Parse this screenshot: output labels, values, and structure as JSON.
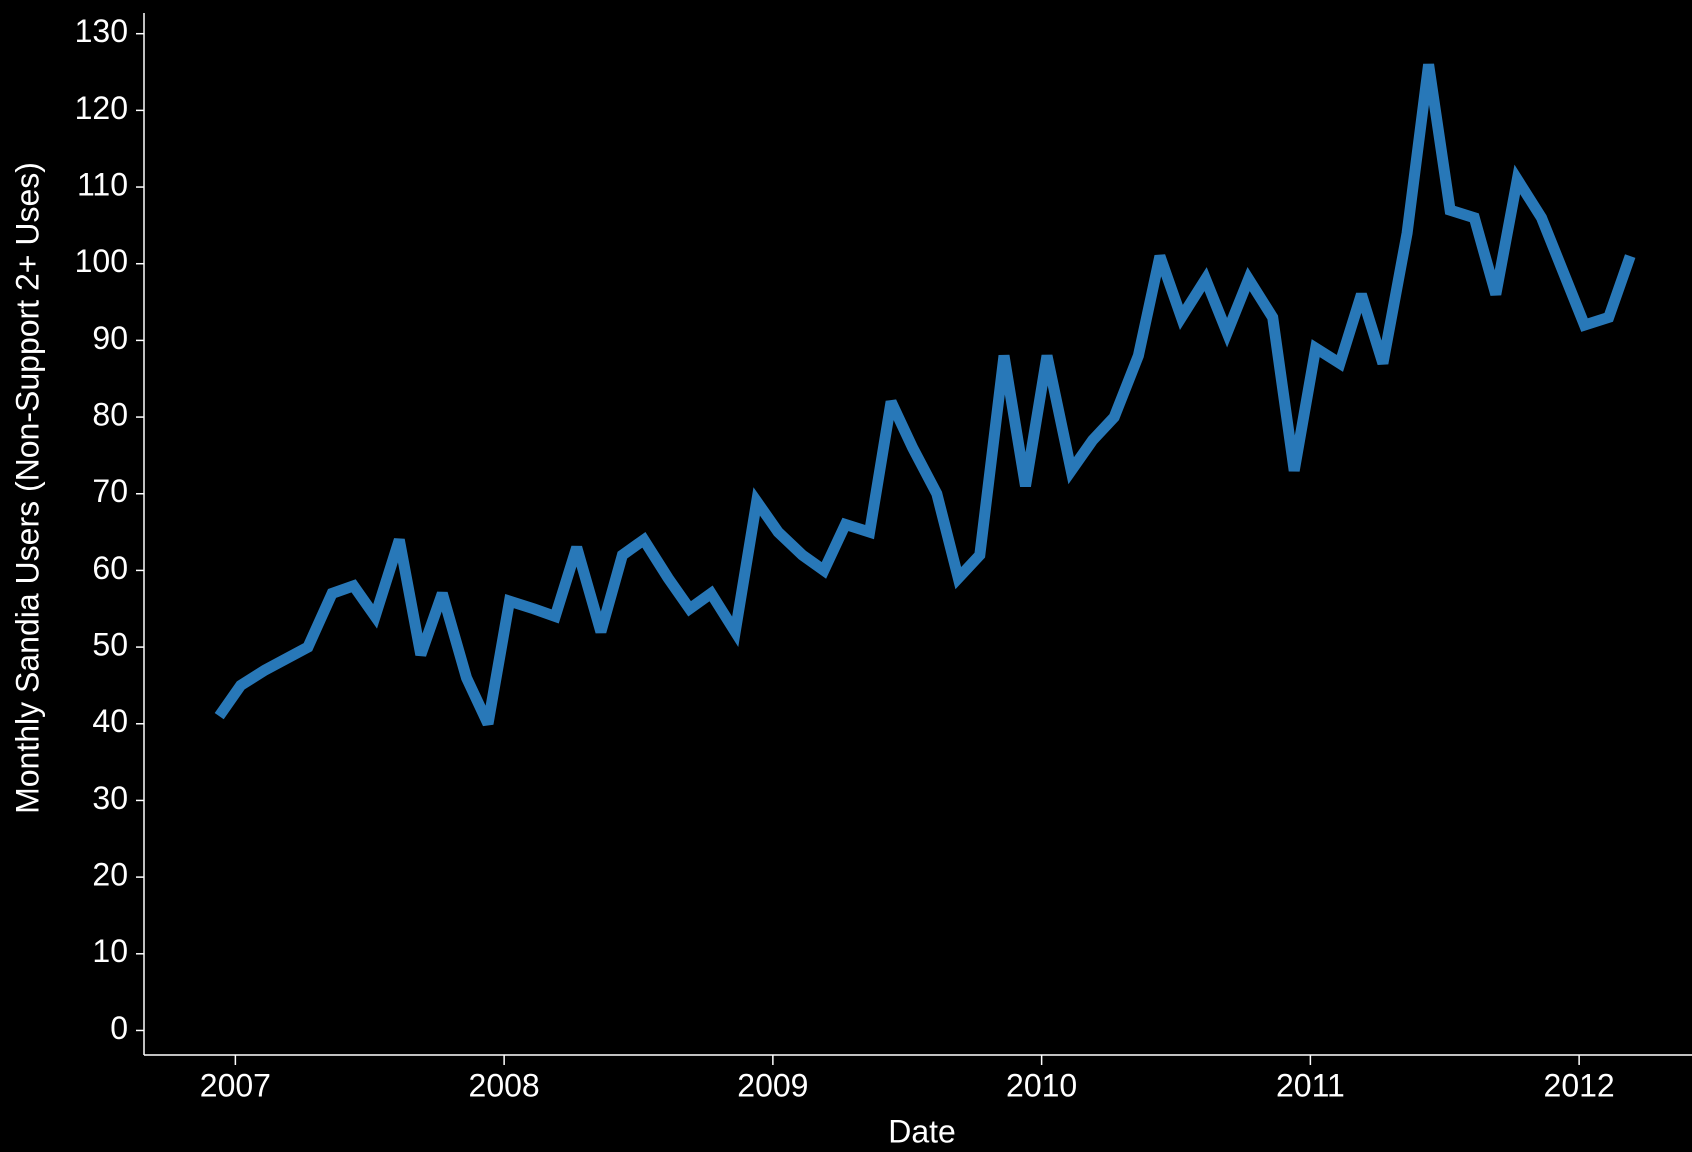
{
  "chart_data": {
    "type": "line",
    "x_label": "Date",
    "y_label": "Monthly Sandia Users (Non-Support 2+ Uses)",
    "x": [
      2006.94,
      2007.02,
      2007.11,
      2007.19,
      2007.27,
      2007.36,
      2007.44,
      2007.52,
      2007.61,
      2007.69,
      2007.77,
      2007.86,
      2007.94,
      2008.02,
      2008.11,
      2008.19,
      2008.27,
      2008.36,
      2008.44,
      2008.52,
      2008.61,
      2008.69,
      2008.77,
      2008.86,
      2008.94,
      2009.02,
      2009.11,
      2009.19,
      2009.27,
      2009.36,
      2009.44,
      2009.52,
      2009.61,
      2009.69,
      2009.77,
      2009.86,
      2009.94,
      2010.02,
      2010.11,
      2010.19,
      2010.27,
      2010.36,
      2010.44,
      2010.52,
      2010.61,
      2010.69,
      2010.77,
      2010.86,
      2010.94,
      2011.02,
      2011.11,
      2011.19,
      2011.27,
      2011.36,
      2011.44,
      2011.52,
      2011.61,
      2011.69,
      2011.77,
      2011.86,
      2011.94,
      2012.02,
      2012.11,
      2012.19
    ],
    "series": [
      {
        "name": "Monthly Sandia Users",
        "color": "#2878b8",
        "values": [
          41,
          45,
          47,
          48.5,
          50,
          57,
          58,
          54,
          64,
          49,
          57,
          46,
          40,
          56,
          55,
          54,
          63,
          52,
          62,
          64,
          59,
          55,
          57,
          52,
          69,
          65,
          62,
          60,
          66,
          65,
          82,
          76,
          70,
          59,
          62,
          88,
          71,
          88,
          73,
          77,
          80,
          88,
          101,
          93,
          98,
          91,
          98,
          93,
          73,
          89,
          87,
          96,
          87,
          104,
          126,
          107,
          106,
          96,
          111,
          106,
          99,
          92,
          93,
          101
        ]
      }
    ],
    "xlim": [
      2006.66,
      2012.42
    ],
    "xticks": [
      2007,
      2008,
      2009,
      2010,
      2011,
      2012
    ],
    "ylim": [
      -3.2,
      132.7
    ],
    "yticks": [
      0,
      10,
      20,
      30,
      40,
      50,
      60,
      70,
      80,
      90,
      100,
      110,
      120,
      130
    ]
  }
}
